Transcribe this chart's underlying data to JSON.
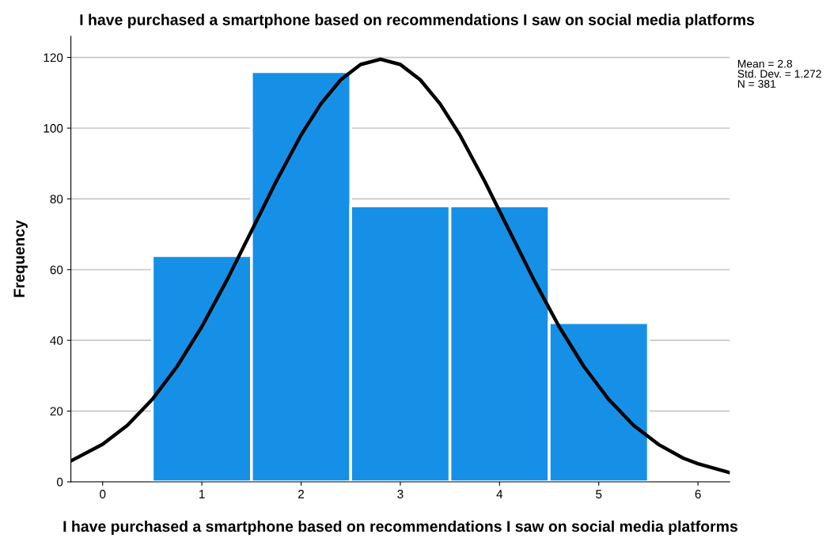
{
  "chart_data": {
    "type": "histogram",
    "title": "I have purchased a smartphone based on recommendations I saw on social media platforms",
    "xlabel": "I have purchased a smartphone based on recommendations I saw on social media platforms",
    "ylabel": "Frequency",
    "bins": [
      0.5,
      1.5,
      2.5,
      3.5,
      4.5,
      5.5
    ],
    "values": [
      64,
      116,
      78,
      78,
      45
    ],
    "color": "#1690e6",
    "series": [
      {
        "type": "line",
        "color": "#000000",
        "x": [
          -0.32,
          0,
          0.25,
          0.5,
          0.75,
          1,
          1.25,
          1.5,
          1.75,
          2,
          2.2,
          2.4,
          2.6,
          2.8,
          3.0,
          3.2,
          3.4,
          3.6,
          3.85,
          4.1,
          4.35,
          4.6,
          4.85,
          5.1,
          5.35,
          5.6,
          5.85,
          6.0,
          6.32
        ],
        "values": [
          5.9,
          10.6,
          16.0,
          23.3,
          32.6,
          43.9,
          56.9,
          70.9,
          85.0,
          98.1,
          106.9,
          113.7,
          118.0,
          119.5,
          118.0,
          113.7,
          106.9,
          98.1,
          85.0,
          70.9,
          56.9,
          43.9,
          32.6,
          23.3,
          16.0,
          10.6,
          6.7,
          5.1,
          2.6
        ]
      }
    ],
    "xlim": [
      -0.32,
      6.32
    ],
    "xticks": [
      0,
      1,
      2,
      3,
      4,
      5,
      6
    ],
    "ylim": [
      0,
      126
    ],
    "yticks": [
      0,
      20,
      40,
      60,
      80,
      100,
      120
    ],
    "grid": "y",
    "annotations": [
      "Mean = 2.8",
      "Std. Dev. = 1.272",
      "N = 381"
    ]
  }
}
